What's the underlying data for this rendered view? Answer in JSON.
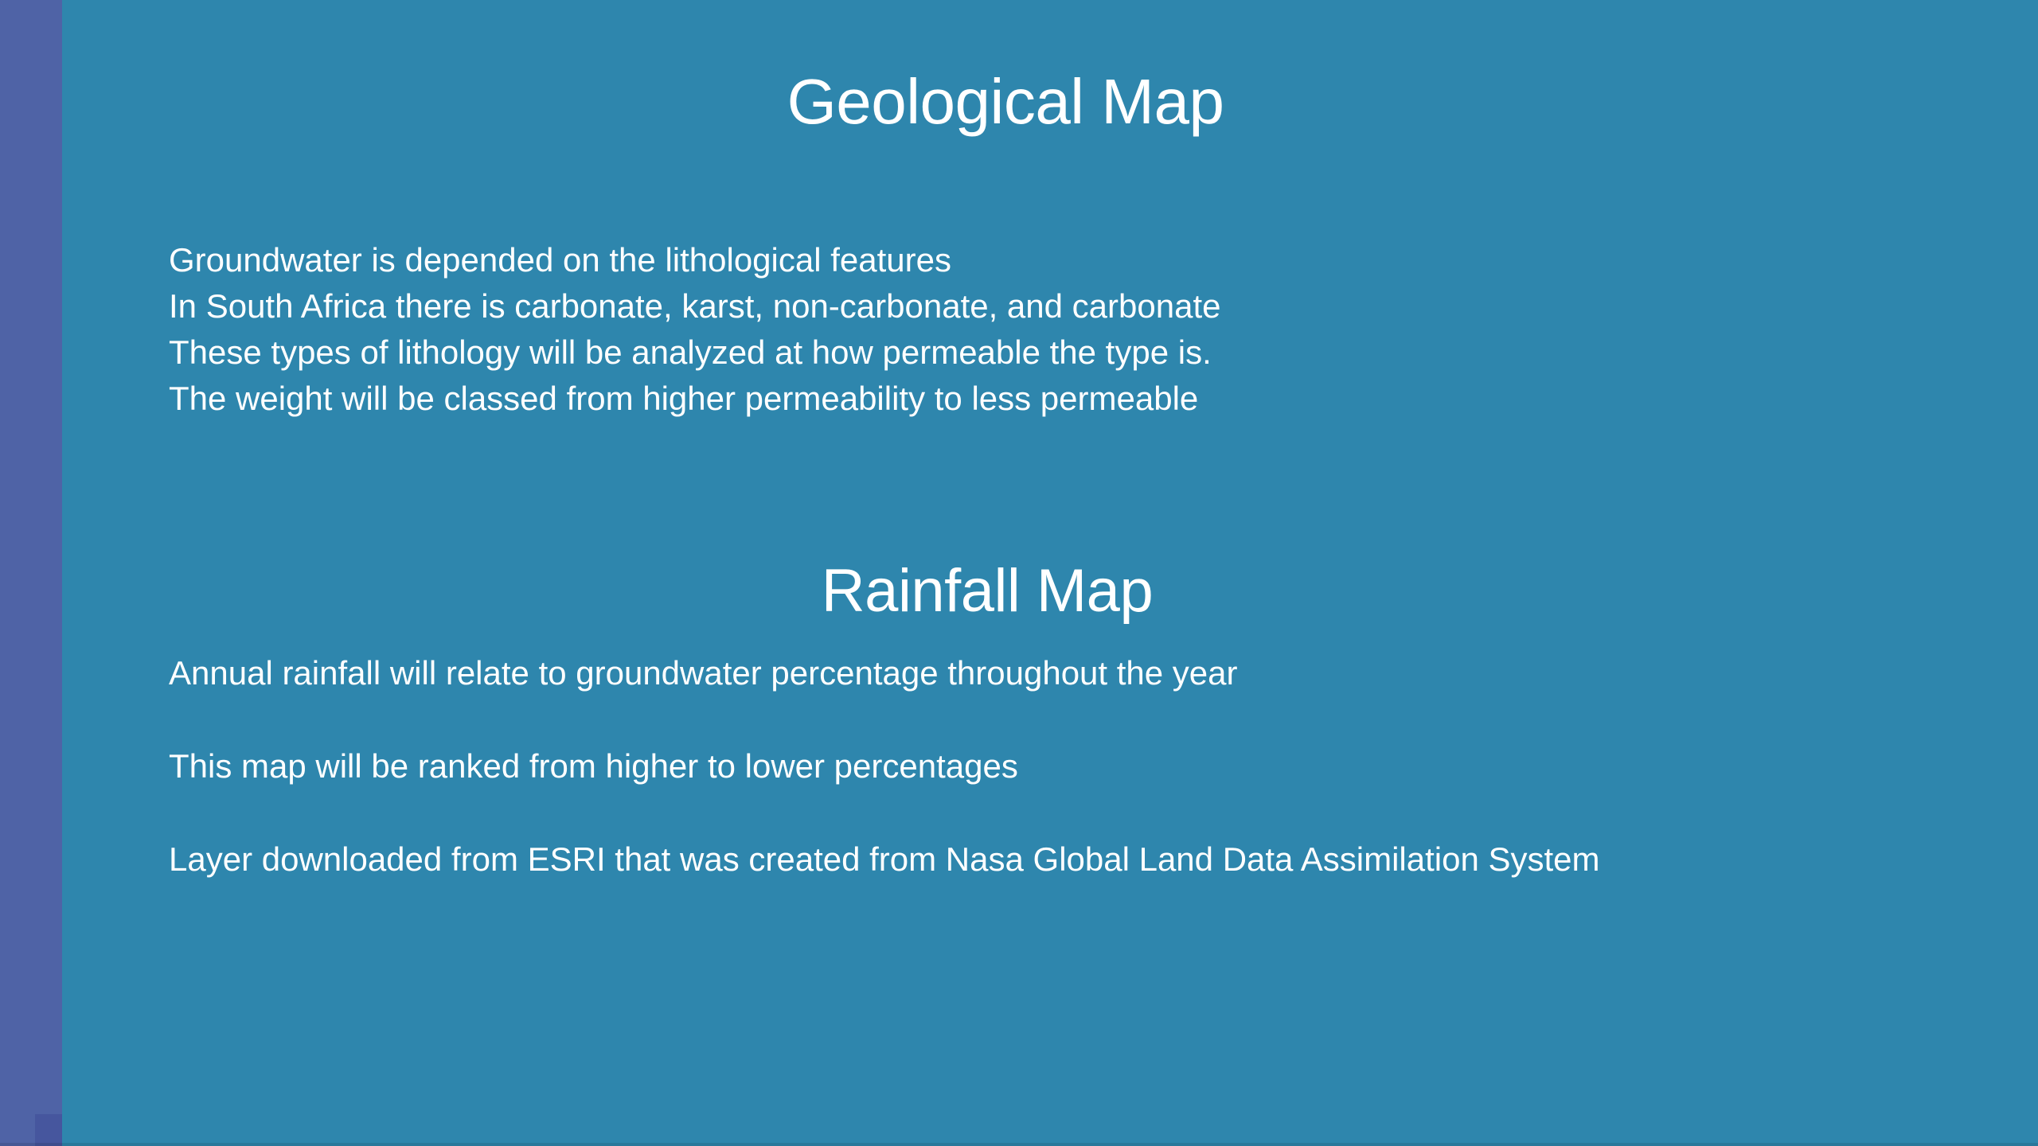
{
  "slide": {
    "background_color": "#2e86ad",
    "accent_band_color": "#4f63a6",
    "accent_square_color": "#46569e",
    "text_color": "#ffffff",
    "sections": [
      {
        "title": "Geological Map",
        "lines": [
          "Groundwater is depended on the lithological features",
          "In South Africa there is carbonate, karst, non-carbonate, and carbonate",
          "These types of lithology will be analyzed at how permeable the type is.",
          "The weight will be classed from higher permeability to less permeable"
        ]
      },
      {
        "title": "Rainfall Map",
        "paragraphs": [
          "Annual rainfall will relate to groundwater percentage throughout the year",
          "This map will be ranked from higher to lower percentages",
          "Layer downloaded from ESRI that was created from Nasa Global Land Data Assimilation System"
        ]
      }
    ]
  }
}
